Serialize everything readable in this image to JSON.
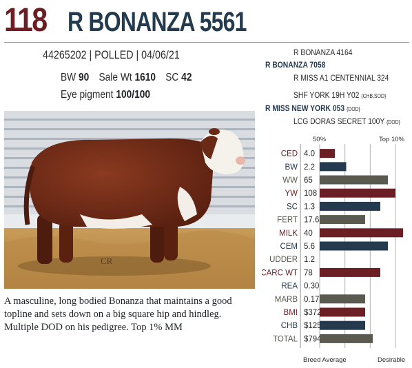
{
  "header": {
    "lot_number": "118",
    "name": "R BONANZA 5561"
  },
  "info": {
    "registration": "44265202 | POLLED | 04/06/21",
    "bw_label": "BW",
    "bw_value": "90",
    "sale_wt_label": "Sale Wt",
    "sale_wt_value": "1610",
    "sc_label": "SC",
    "sc_value": "42",
    "eye_label": "Eye pigment",
    "eye_value": "100/100"
  },
  "pedigree": {
    "sire_sire": "R BONANZA 4164",
    "sire": "R BONANZA 7058",
    "sire_dam": "R MISS A1 CENTENNIAL 324",
    "dam_sire": "SHF YORK 19H Y02",
    "dam_sire_tag": "{CHB,SOD}",
    "dam": "R MISS NEW YORK 053",
    "dam_tag": "{DOD}",
    "dam_dam": "LCG DORAS SECRET 100Y",
    "dam_dam_tag": "{DOD}"
  },
  "photo": {
    "watermark": "CR"
  },
  "description": "A masculine, long bodied Bonanza that maintains a good topline and sets down on a big square hip and hindleg. Multiple DOD on his pedigree. Top 1% MM",
  "chart_data": {
    "type": "bar",
    "axis_top_left": "50%",
    "axis_top_right": "Top 10%",
    "axis_bottom_left": "Breed Average",
    "axis_bottom_right": "Desirable",
    "gridlines": 4,
    "categories": [
      "CED",
      "BW",
      "WW",
      "YW",
      "SC",
      "FERT",
      "MILK",
      "CEM",
      "UDDER",
      "CARC WT",
      "REA",
      "MARB",
      "BMI",
      "CHB",
      "TOTAL"
    ],
    "values": [
      "4.0",
      "2.2",
      "65",
      "108",
      "1.3",
      "17.6",
      "40",
      "5.6",
      "1.2",
      "78",
      "0.30",
      "0.17",
      "$372",
      "$125",
      "$794"
    ],
    "bar_levels": [
      0.2,
      0.35,
      0.9,
      1.0,
      0.8,
      0.6,
      1.1,
      0.9,
      0,
      0.8,
      0,
      0.6,
      0.6,
      0.6,
      0.7
    ],
    "label_colors": [
      "#6b1f24",
      "#243a4f",
      "#5a5a50",
      "#6b1f24",
      "#243a4f",
      "#5a5a50",
      "#6b1f24",
      "#243a4f",
      "#5a5a50",
      "#6b1f24",
      "#243a4f",
      "#5a5a50",
      "#6b1f24",
      "#243a4f",
      "#5a5a50"
    ],
    "bar_colors": [
      "#6b1f24",
      "#243a4f",
      "#5a5a50",
      "#6b1f24",
      "#243a4f",
      "#5a5a50",
      "#6b1f24",
      "#243a4f",
      "#5a5a50",
      "#6b1f24",
      "#243a4f",
      "#5a5a50",
      "#6b1f24",
      "#243a4f",
      "#5a5a50"
    ]
  }
}
